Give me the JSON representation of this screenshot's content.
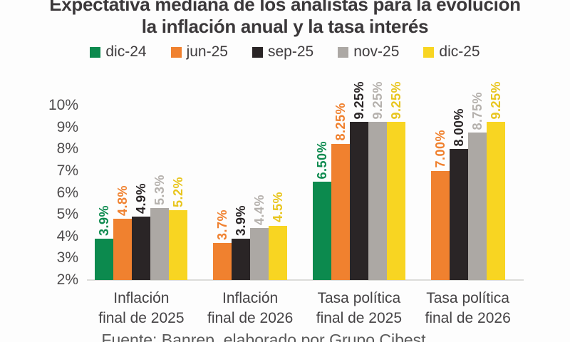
{
  "title": {
    "line1": "Expectativa mediana de los analistas para la evolución",
    "line2": "la inflación anual y la tasa interés"
  },
  "footer": {
    "text": "Fuente: Banrep, elaborado por Grupo Cibest"
  },
  "colors": {
    "green": "#0c8a4e",
    "orange": "#f0812f",
    "black": "#2a2526",
    "gray": "#aca8a4",
    "yellow": "#f8d522",
    "axis_line": "#dcdcda"
  },
  "chart_data": {
    "type": "bar",
    "title": "Expectativa mediana de los analistas para la evolución la inflación anual y la tasa interés",
    "categories": [
      {
        "line1": "Inflación",
        "line2": "final de 2025"
      },
      {
        "line1": "Inflación",
        "line2": "final de 2026"
      },
      {
        "line1": "Tasa política",
        "line2": "final de 2025"
      },
      {
        "line1": "Tasa política",
        "line2": "final de 2026"
      }
    ],
    "series": [
      {
        "name": "dic-24",
        "color": "#0c8a4e",
        "label_color": "#0e8a4f",
        "values": [
          3.9,
          null,
          6.5,
          null
        ],
        "labels": [
          "3.9%",
          null,
          "6.50%",
          null
        ]
      },
      {
        "name": "jun-25",
        "color": "#f0812f",
        "label_color": "#f0812f",
        "values": [
          4.8,
          3.7,
          8.25,
          7.0
        ],
        "labels": [
          "4.8%",
          "3.7%",
          "8.25%",
          "7.00%"
        ]
      },
      {
        "name": "sep-25",
        "color": "#2a2526",
        "label_color": "#2a2526",
        "values": [
          4.9,
          3.9,
          9.25,
          8.0
        ],
        "labels": [
          "4.9%",
          "3.9%",
          "9.25%",
          "8.00%"
        ]
      },
      {
        "name": "nov-25",
        "color": "#aca8a4",
        "label_color": "#b5b1ad",
        "values": [
          5.3,
          4.4,
          9.25,
          8.75
        ],
        "labels": [
          "5.3%",
          "4.4%",
          "9.25%",
          "8.75%"
        ]
      },
      {
        "name": "dic-25",
        "color": "#f8d522",
        "label_color": "#e8c51e",
        "values": [
          5.2,
          4.5,
          9.25,
          9.25
        ],
        "labels": [
          "5.2%",
          "4.5%",
          "9.25%",
          "9.25%"
        ]
      }
    ],
    "ylabel": "",
    "xlabel": "",
    "ylim": [
      2,
      10
    ],
    "y_ticks": [
      10,
      9,
      8,
      7,
      6,
      5,
      4,
      3,
      2
    ],
    "y_tick_labels": [
      "10%",
      "9%",
      "8%",
      "7%",
      "6%",
      "5%",
      "4%",
      "3%",
      "2%"
    ],
    "legend_position": "top",
    "grid": false,
    "bar_value_labels_rotated": true
  }
}
